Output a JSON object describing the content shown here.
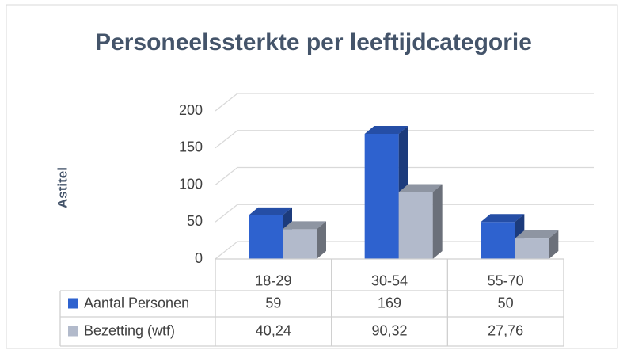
{
  "chart_data": {
    "type": "bar3d",
    "title": "Personeelssterkte per leeftijdcategorie",
    "y_label": "Astitel",
    "categories": [
      "18-29",
      "30-54",
      "55-70"
    ],
    "series": [
      {
        "name": "Aantal Personen",
        "color": "#2e62cf",
        "values": [
          59,
          169,
          50
        ]
      },
      {
        "name": "Bezetting (wtf)",
        "color": "#b2bacb",
        "values": [
          40.24,
          90.32,
          27.76
        ],
        "value_labels": [
          "40,24",
          "90,32",
          "27,76"
        ]
      }
    ],
    "ylim": [
      0,
      200
    ],
    "yticks": [
      0,
      50,
      100,
      150,
      200
    ],
    "grid": true,
    "data_table": true
  }
}
